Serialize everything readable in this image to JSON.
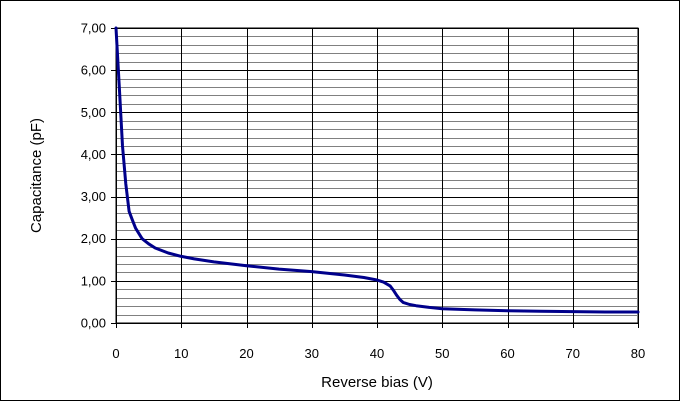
{
  "chart_data": {
    "type": "line",
    "title": "",
    "xlabel": "Reverse bias (V)",
    "ylabel": "Capacitance (pF)",
    "xlim": [
      0,
      80
    ],
    "ylim": [
      0,
      7
    ],
    "x_ticks": [
      0,
      10,
      20,
      30,
      40,
      50,
      60,
      70,
      80
    ],
    "x_tick_labels": [
      "0",
      "10",
      "20",
      "30",
      "40",
      "50",
      "60",
      "70",
      "80"
    ],
    "y_ticks": [
      0,
      1,
      2,
      3,
      4,
      5,
      6,
      7
    ],
    "y_tick_labels": [
      "0,00",
      "1,00",
      "2,00",
      "3,00",
      "4,00",
      "5,00",
      "6,00",
      "7,00"
    ],
    "grid": {
      "major_x": true,
      "major_y": true,
      "minor_y": true
    },
    "legend": "none",
    "colors": {
      "line": "#00008B",
      "major_grid": "#000000",
      "minor_grid": "#808080",
      "plot_background": "#ffffff"
    },
    "series": [
      {
        "x": [
          0,
          0.5,
          1,
          1.5,
          2,
          2.5,
          3,
          4,
          5,
          6,
          8,
          10,
          12,
          15,
          20,
          25,
          30,
          35,
          38,
          40,
          41,
          42,
          42.5,
          43,
          43.5,
          44,
          45,
          46,
          48,
          50,
          55,
          60,
          65,
          70,
          75,
          80
        ],
        "values": [
          7.0,
          5.6,
          4.2,
          3.3,
          2.65,
          2.45,
          2.25,
          2.0,
          1.88,
          1.78,
          1.66,
          1.58,
          1.52,
          1.45,
          1.36,
          1.28,
          1.22,
          1.14,
          1.08,
          1.02,
          0.97,
          0.88,
          0.78,
          0.66,
          0.56,
          0.49,
          0.44,
          0.41,
          0.37,
          0.34,
          0.31,
          0.29,
          0.28,
          0.27,
          0.26,
          0.26
        ]
      }
    ]
  }
}
